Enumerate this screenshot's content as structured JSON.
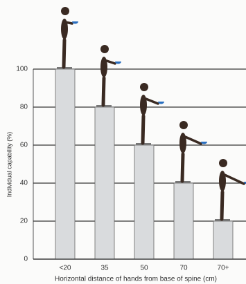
{
  "chart_data": {
    "type": "bar",
    "categories": [
      "<20",
      "35",
      "50",
      "70",
      "70+"
    ],
    "values": [
      100,
      80,
      60,
      40,
      20
    ],
    "color": "#d9dbdd",
    "ylim": [
      0,
      100
    ],
    "yticks": [
      0,
      20,
      40,
      60,
      80,
      100
    ],
    "grid": true,
    "y_label": "Individual capability (%)",
    "x_label": "Horizontal distance of hands from base of spine (cm)"
  }
}
